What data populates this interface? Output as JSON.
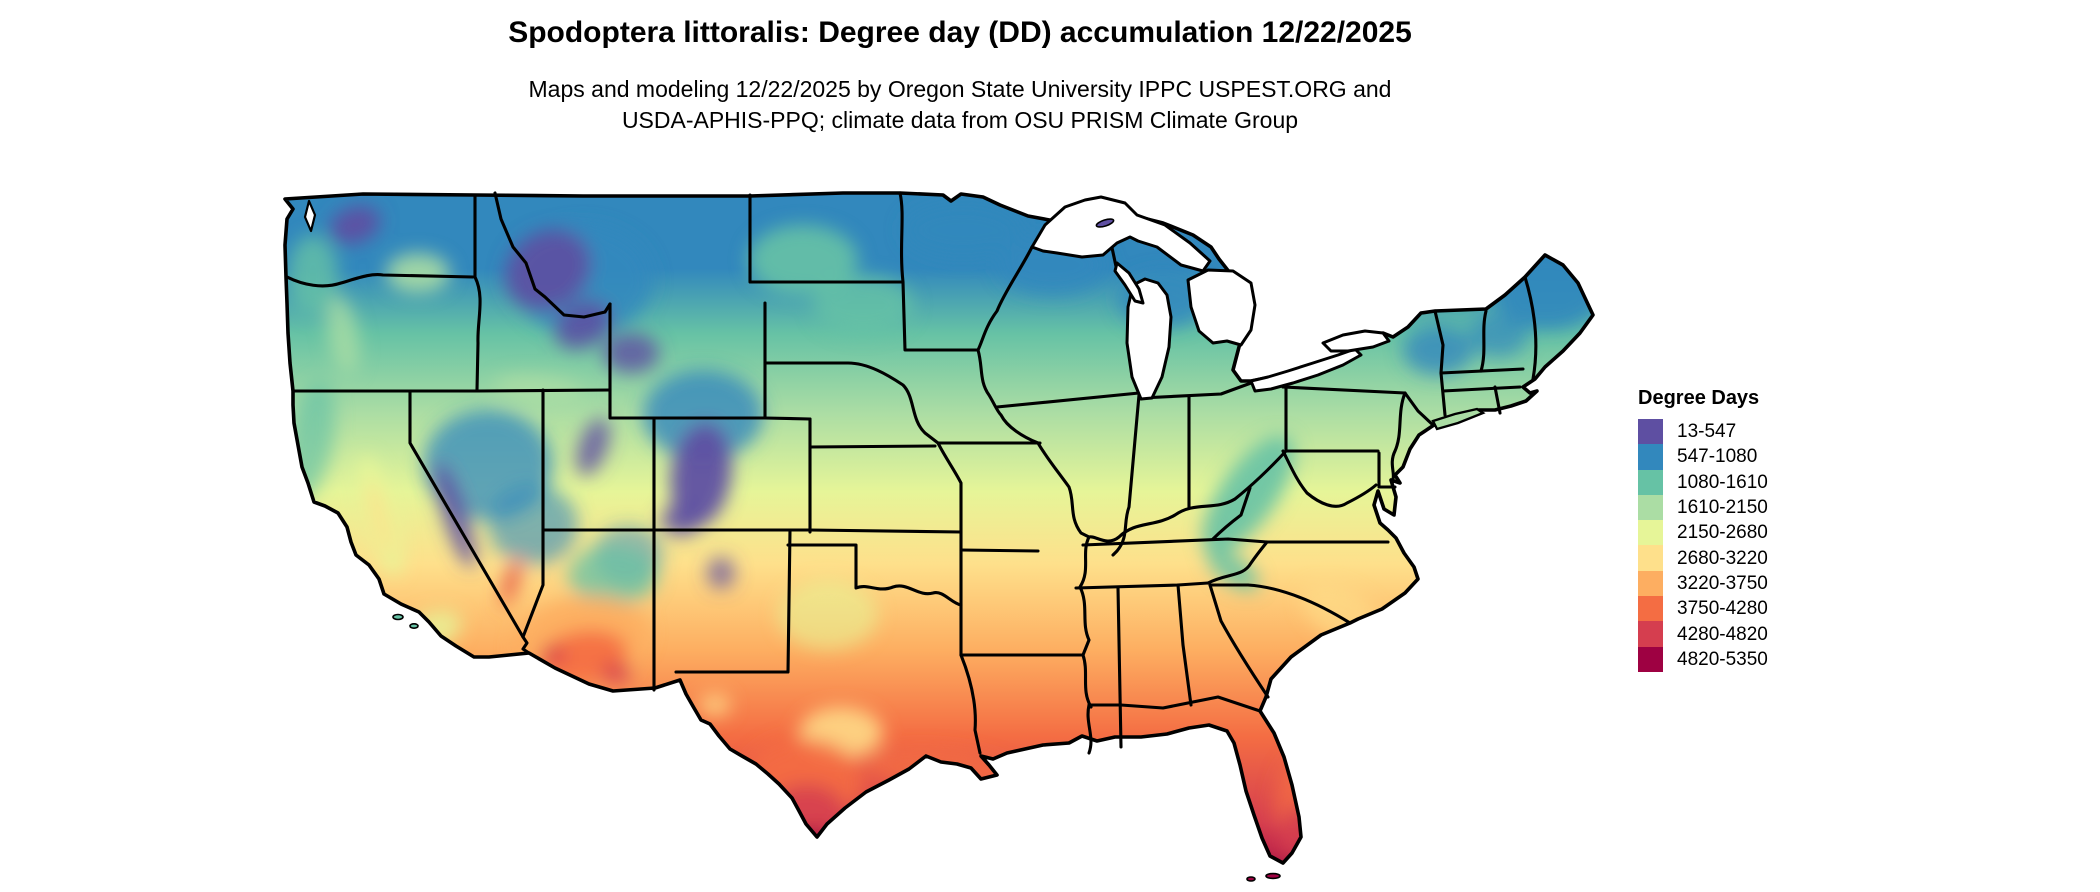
{
  "title": "Spodoptera littoralis: Degree day (DD) accumulation 12/22/2025",
  "subtitle": {
    "line1": "Maps and modeling 12/22/2025 by Oregon State University IPPC USPEST.ORG and",
    "line2": "USDA-APHIS-PPQ; climate data from OSU PRISM Climate Group"
  },
  "legend": {
    "title": "Degree Days",
    "items": [
      {
        "label": "13-547",
        "color": "#5e4fa2"
      },
      {
        "label": "547-1080",
        "color": "#3288bd"
      },
      {
        "label": "1080-1610",
        "color": "#66c2a5"
      },
      {
        "label": "1610-2150",
        "color": "#abdda4"
      },
      {
        "label": "2150-2680",
        "color": "#e6f598"
      },
      {
        "label": "2680-3220",
        "color": "#fee08b"
      },
      {
        "label": "3220-3750",
        "color": "#fdae61"
      },
      {
        "label": "3750-4280",
        "color": "#f46d43"
      },
      {
        "label": "4280-4820",
        "color": "#d53e4f"
      },
      {
        "label": "4820-5350",
        "color": "#9e0142"
      }
    ]
  },
  "map": {
    "region": "Continental United States",
    "water_color": "#ffffff",
    "state_border_color": "#000000"
  }
}
